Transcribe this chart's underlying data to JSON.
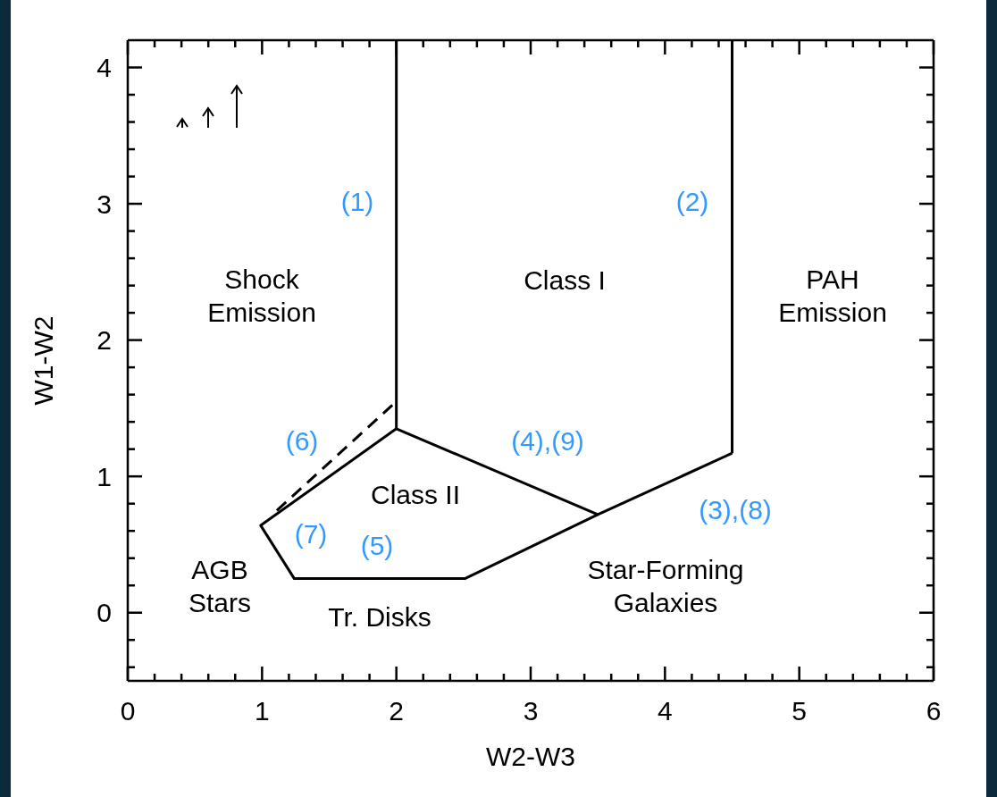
{
  "chart_data": {
    "type": "line",
    "xlabel": "W2-W3",
    "ylabel": "W1-W2",
    "xlim": [
      0,
      6
    ],
    "ylim": [
      -0.5,
      4.2
    ],
    "xticks": [
      0,
      {
        "value": 0.2,
        "label": null
      },
      {
        "value": 0.4,
        "label": null
      },
      {
        "value": 0.6,
        "label": null
      },
      {
        "value": 0.8,
        "label": null
      },
      1,
      {
        "value": 1.2,
        "label": null
      },
      {
        "value": 1.4,
        "label": null
      },
      {
        "value": 1.6,
        "label": null
      },
      {
        "value": 1.8,
        "label": null
      },
      2,
      {
        "value": 2.2,
        "label": null
      },
      {
        "value": 2.4,
        "label": null
      },
      {
        "value": 2.6,
        "label": null
      },
      {
        "value": 2.8,
        "label": null
      },
      3,
      {
        "value": 3.2,
        "label": null
      },
      {
        "value": 3.4,
        "label": null
      },
      {
        "value": 3.6,
        "label": null
      },
      {
        "value": 3.8,
        "label": null
      },
      4,
      {
        "value": 4.2,
        "label": null
      },
      {
        "value": 4.4,
        "label": null
      },
      {
        "value": 4.6,
        "label": null
      },
      {
        "value": 4.8,
        "label": null
      },
      5,
      {
        "value": 5.2,
        "label": null
      },
      {
        "value": 5.4,
        "label": null
      },
      {
        "value": 5.6,
        "label": null
      },
      {
        "value": 5.8,
        "label": null
      },
      6
    ],
    "yticks": [
      {
        "value": -0.4,
        "label": null
      },
      {
        "value": -0.2,
        "label": null
      },
      0,
      {
        "value": 0.2,
        "label": null
      },
      {
        "value": 0.4,
        "label": null
      },
      {
        "value": 0.6,
        "label": null
      },
      {
        "value": 0.8,
        "label": null
      },
      1,
      {
        "value": 1.2,
        "label": null
      },
      {
        "value": 1.4,
        "label": null
      },
      {
        "value": 1.6,
        "label": null
      },
      {
        "value": 1.8,
        "label": null
      },
      2,
      {
        "value": 2.2,
        "label": null
      },
      {
        "value": 2.4,
        "label": null
      },
      {
        "value": 2.6,
        "label": null
      },
      {
        "value": 2.8,
        "label": null
      },
      3,
      {
        "value": 3.2,
        "label": null
      },
      {
        "value": 3.4,
        "label": null
      },
      {
        "value": 3.6,
        "label": null
      },
      {
        "value": 3.8,
        "label": null
      },
      4
    ],
    "marker": "none",
    "line_style": "solid",
    "series": [
      {
        "color": "#000000",
        "x": [
          2,
          2
        ],
        "values": [
          1.35,
          4.2
        ]
      },
      {
        "color": "#000000",
        "x": [
          4.5,
          4.5
        ],
        "values": [
          1.17,
          4.2
        ]
      },
      {
        "color": "#000000",
        "x": [
          2,
          3.5,
          4.5
        ],
        "values": [
          1.35,
          0.72,
          1.17
        ]
      },
      {
        "color": "#000000",
        "x": [
          2,
          0.99,
          1.24,
          2.51,
          3.5
        ],
        "values": [
          1.35,
          0.64,
          0.25,
          0.25,
          0.72
        ]
      },
      {
        "color": "#000000",
        "x": [
          1.11,
          2
        ],
        "values": [
          0.75,
          1.55
        ],
        "line_style": "dashed"
      }
    ],
    "annotations": [
      "(1)",
      "(2)",
      "Shock\nEmission",
      "Class I",
      "PAH\nEmission",
      "(6)",
      "(4),(9)",
      "Class II",
      "(3),(8)",
      "(7)",
      "(5)",
      "AGB\nStars",
      "Star-Forming\nGalaxies",
      "Tr. Disks"
    ]
  }
}
